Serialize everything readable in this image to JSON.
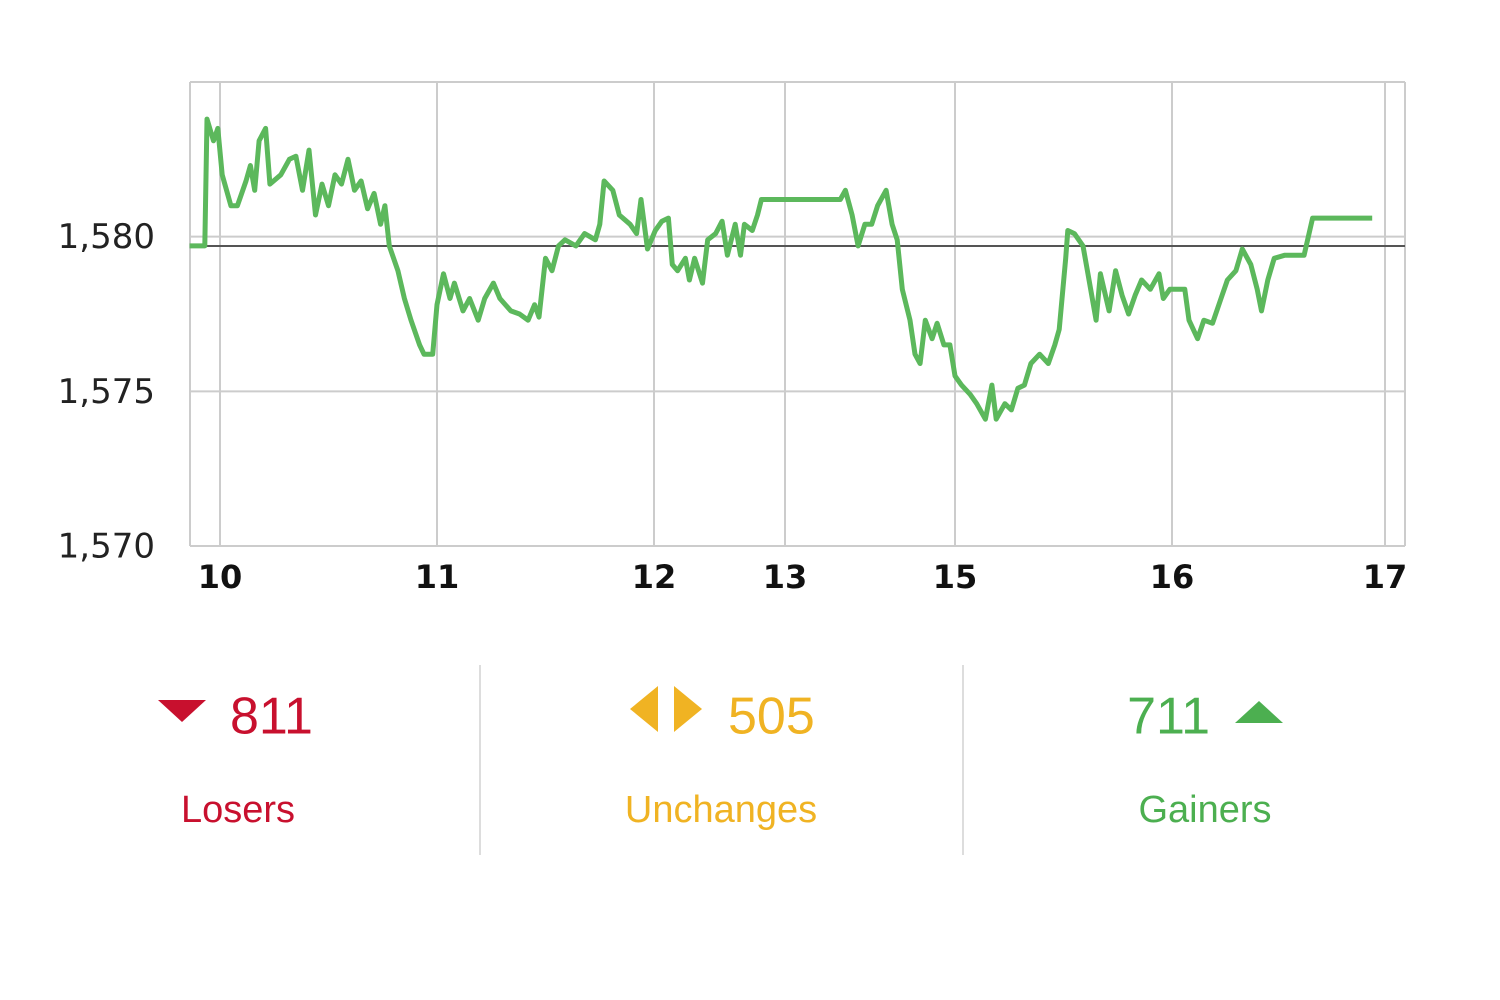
{
  "chart_data": {
    "type": "line",
    "color": "#5cb85c",
    "reference_line": 1579.7,
    "reference_color": "#555555",
    "grid": true,
    "x": [
      9.86,
      9.93,
      9.94,
      9.97,
      9.99,
      10.01,
      10.05,
      10.08,
      10.12,
      10.14,
      10.16,
      10.18,
      10.21,
      10.23,
      10.28,
      10.32,
      10.35,
      10.38,
      10.41,
      10.44,
      10.47,
      10.5,
      10.53,
      10.56,
      10.59,
      10.62,
      10.65,
      10.68,
      10.71,
      10.74,
      10.76,
      10.78,
      10.82,
      10.85,
      10.88,
      10.92,
      10.94,
      10.98,
      11.0,
      11.03,
      11.06,
      11.08,
      11.12,
      11.15,
      11.19,
      11.22,
      11.26,
      11.29,
      11.34,
      11.38,
      11.42,
      11.45,
      11.47,
      11.5,
      11.53,
      11.56,
      11.59,
      11.64,
      11.68,
      11.73,
      11.75,
      11.77,
      11.81,
      11.84,
      11.89,
      11.92,
      11.94,
      11.97,
      12.01,
      12.06,
      12.11,
      12.14,
      12.18,
      12.24,
      12.27,
      12.31,
      12.37,
      12.41,
      12.47,
      12.52,
      12.56,
      12.62,
      12.66,
      12.69,
      12.75,
      12.79,
      12.82,
      13.18,
      13.65,
      13.71,
      13.79,
      13.86,
      13.94,
      14.02,
      14.09,
      14.19,
      14.26,
      14.32,
      14.38,
      14.47,
      14.53,
      14.59,
      14.65,
      14.73,
      14.79,
      14.87,
      14.94,
      15.0,
      15.03,
      15.07,
      15.1,
      15.14,
      15.17,
      15.19,
      15.23,
      15.26,
      15.29,
      15.32,
      15.35,
      15.39,
      15.43,
      15.46,
      15.48,
      15.51,
      15.52,
      15.55,
      15.59,
      15.61,
      15.65,
      15.67,
      15.71,
      15.74,
      15.77,
      15.8,
      15.83,
      15.86,
      15.9,
      15.94,
      15.96,
      15.99,
      16.06,
      16.08,
      16.12,
      16.15,
      16.19,
      16.23,
      16.26,
      16.3,
      16.33,
      16.37,
      16.4,
      16.42,
      16.45,
      16.48,
      16.53,
      16.62,
      16.66,
      16.94
    ],
    "values": [
      1579.7,
      1579.7,
      1583.8,
      1583.1,
      1583.5,
      1582.0,
      1581.0,
      1581.0,
      1581.8,
      1582.3,
      1581.5,
      1583.1,
      1583.5,
      1581.7,
      1582.0,
      1582.5,
      1582.6,
      1581.5,
      1582.8,
      1580.7,
      1581.7,
      1581.0,
      1582.0,
      1581.7,
      1582.5,
      1581.5,
      1581.8,
      1580.9,
      1581.4,
      1580.4,
      1581.0,
      1579.7,
      1578.9,
      1578.0,
      1577.3,
      1576.5,
      1576.2,
      1576.2,
      1577.8,
      1578.8,
      1578.0,
      1578.5,
      1577.6,
      1578.0,
      1577.3,
      1578.0,
      1578.5,
      1578.0,
      1577.6,
      1577.5,
      1577.3,
      1577.8,
      1577.4,
      1579.3,
      1578.9,
      1579.7,
      1579.9,
      1579.7,
      1580.1,
      1579.9,
      1580.4,
      1581.8,
      1581.5,
      1580.7,
      1580.4,
      1580.1,
      1581.2,
      1579.6,
      1580.2,
      1580.5,
      1580.6,
      1579.1,
      1578.9,
      1579.3,
      1578.6,
      1579.3,
      1578.5,
      1579.9,
      1580.1,
      1580.5,
      1579.4,
      1580.4,
      1579.4,
      1580.4,
      1580.2,
      1580.7,
      1581.2,
      1581.2,
      1581.2,
      1581.5,
      1580.7,
      1579.7,
      1580.4,
      1580.4,
      1581.0,
      1581.5,
      1580.4,
      1579.9,
      1578.3,
      1577.3,
      1576.2,
      1575.9,
      1577.3,
      1576.7,
      1577.2,
      1576.5,
      1576.5,
      1575.5,
      1575.2,
      1574.9,
      1574.6,
      1574.1,
      1575.2,
      1574.1,
      1574.6,
      1574.4,
      1575.1,
      1575.2,
      1575.9,
      1576.2,
      1575.9,
      1576.5,
      1577.0,
      1579.3,
      1580.2,
      1580.1,
      1579.7,
      1578.9,
      1577.3,
      1578.8,
      1577.6,
      1578.9,
      1578.1,
      1577.5,
      1578.1,
      1578.6,
      1578.3,
      1578.8,
      1578.0,
      1578.3,
      1578.3,
      1577.3,
      1576.7,
      1577.3,
      1577.2,
      1578.0,
      1578.6,
      1578.9,
      1579.6,
      1579.1,
      1578.3,
      1577.6,
      1578.6,
      1579.3,
      1579.4,
      1579.4,
      1580.6,
      1580.6
    ],
    "xlim": [
      9.86,
      17.09
    ],
    "xticks": [
      10,
      11,
      12,
      13,
      15,
      16,
      17
    ],
    "ylim": [
      1570,
      1585
    ],
    "yticks": [
      {
        "value": 1570,
        "label": "1,570"
      },
      {
        "value": 1575,
        "label": "1,575"
      },
      {
        "value": 1580,
        "label": "1,580"
      }
    ]
  },
  "stats": [
    {
      "value": 811,
      "label": "Losers",
      "color": "#c8102e"
    },
    {
      "value": 505,
      "label": "Unchanges",
      "color": "#f0b323"
    },
    {
      "value": 711,
      "label": "Gainers",
      "color": "#4caf50"
    }
  ]
}
